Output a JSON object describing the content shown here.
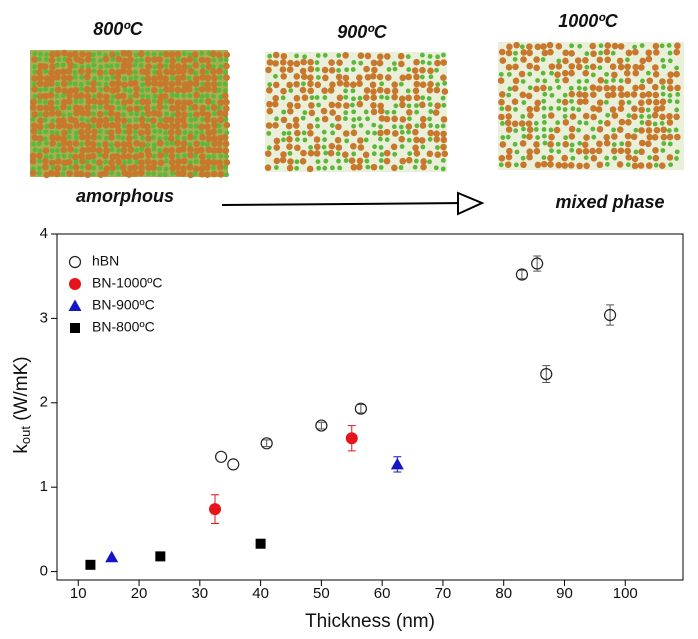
{
  "panels": [
    {
      "title": "800ºC",
      "caption": "amorphous"
    },
    {
      "title": "900ºC"
    },
    {
      "title": "1000ºC",
      "caption": "mixed phase"
    }
  ],
  "chart_data": {
    "type": "scatter",
    "xlabel": "Thickness (nm)",
    "ylabel": "k",
    "ylabel_sub": "out",
    "ylabel_unit": " (W/mK)",
    "xlim": [
      6.5,
      109.5
    ],
    "ylim": [
      -0.1,
      4
    ],
    "xticks": [
      10,
      20,
      30,
      40,
      50,
      60,
      70,
      80,
      90,
      100
    ],
    "yticks": [
      0,
      1,
      2,
      3,
      4
    ],
    "legend": "upper left",
    "series": [
      {
        "name": "hBN",
        "color": "#222222",
        "marker": "open-circle",
        "x": [
          33.5,
          35.5,
          41,
          50,
          56.5,
          83,
          85.5,
          87,
          97.5
        ],
        "y": [
          1.36,
          1.27,
          1.52,
          1.73,
          1.93,
          3.52,
          3.65,
          2.34,
          3.04
        ],
        "errors": [
          null,
          null,
          0.04,
          0.04,
          0.05,
          0.05,
          0.09,
          0.1,
          0.12
        ]
      },
      {
        "name": "BN-1000ºC",
        "color": "#e8141b",
        "marker": "circle",
        "x": [
          32.5,
          55
        ],
        "y": [
          0.74,
          1.58
        ],
        "errors": [
          0.17,
          0.15
        ]
      },
      {
        "name": "BN-900ºC",
        "color": "#1414c8",
        "marker": "triangle",
        "x": [
          15.5,
          62.5
        ],
        "y": [
          0.17,
          1.27
        ],
        "errors": [
          null,
          0.09
        ]
      },
      {
        "name": "BN-800ºC",
        "color": "#000000",
        "marker": "square",
        "x": [
          12,
          23.5,
          40
        ],
        "y": [
          0.08,
          0.18,
          0.33
        ],
        "errors": [
          null,
          null,
          null
        ]
      }
    ]
  }
}
